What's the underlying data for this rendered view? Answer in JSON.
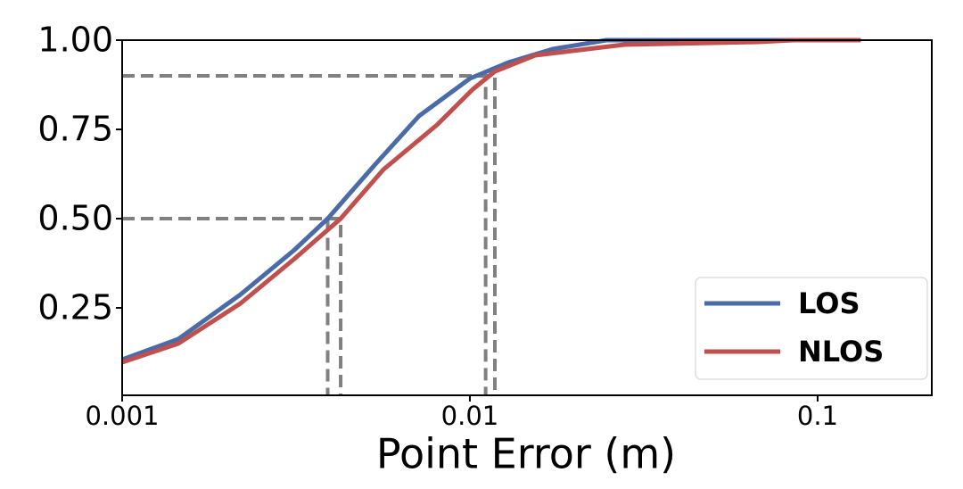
{
  "chart_data": {
    "type": "line",
    "x_label": "Point Error (m)",
    "log_x": true,
    "xlim": [
      0.001,
      0.213
    ],
    "xticks": [
      0.001,
      0.01,
      0.1
    ],
    "ylim": [
      0.005,
      1.0
    ],
    "yticks": [
      {
        "value": 1.0,
        "label": "1.00"
      },
      {
        "value": 0.75,
        "label": "0.75"
      },
      {
        "value": 0.5,
        "label": "0.50"
      },
      {
        "value": 0.25,
        "label": "0.25"
      }
    ],
    "legend_position": "lower right",
    "series": [
      {
        "name": "LOS",
        "color": "#4a6aa8",
        "x": [
          0.001,
          0.00145,
          0.00219,
          0.00313,
          0.0039,
          0.00532,
          0.00714,
          0.01,
          0.0129,
          0.0173,
          0.0247,
          0.133
        ],
        "values": [
          0.105,
          0.1625,
          0.2875,
          0.4125,
          0.5,
          0.65,
          0.7875,
          0.8925,
          0.9375,
          0.975,
          1.0,
          1.0
        ]
      },
      {
        "name": "NLOS",
        "color": "#c0504d",
        "x": [
          0.001,
          0.00145,
          0.00219,
          0.00313,
          0.00425,
          0.00564,
          0.00804,
          0.0102,
          0.0118,
          0.0154,
          0.0278,
          0.0673,
          0.0853,
          0.133
        ],
        "values": [
          0.0975,
          0.15,
          0.2625,
          0.3875,
          0.5,
          0.6375,
          0.7625,
          0.8625,
          0.9125,
          0.9575,
          0.9875,
          0.995,
          1.0,
          1.0
        ]
      }
    ],
    "reference_lines": [
      {
        "x": 0.0039,
        "y": 0.5
      },
      {
        "x": 0.00425,
        "y": 0.5
      },
      {
        "x": 0.0111,
        "y": 0.9
      },
      {
        "x": 0.0118,
        "y": 0.9
      }
    ]
  }
}
